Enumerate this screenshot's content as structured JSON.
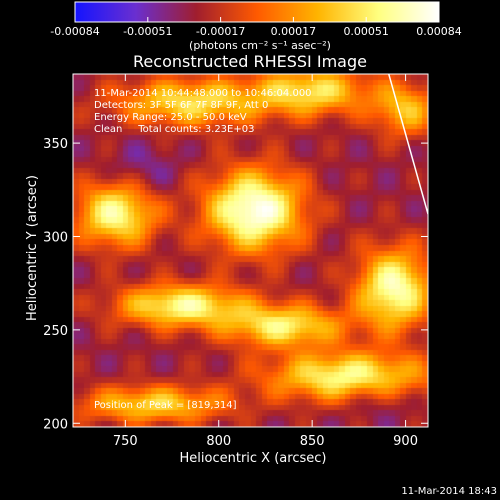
{
  "chart_data": {
    "type": "heatmap",
    "title": "Reconstructed RHESSI Image",
    "xlabel": "Heliocentric X (arcsec)",
    "ylabel": "Heliocentric Y (arcsec)",
    "xlim": [
      722,
      912
    ],
    "ylim": [
      198,
      387
    ],
    "x_ticks": [
      750,
      800,
      850,
      900
    ],
    "y_ticks": [
      200,
      250,
      300,
      350
    ],
    "colorbar": {
      "label": "(photons cm⁻² s⁻¹ asec⁻²)",
      "range": [
        -0.00084,
        0.00084
      ],
      "ticks": [
        "-0.00084",
        "-0.00051",
        "-0.00017",
        "0.00017",
        "0.00051",
        "0.00084"
      ],
      "colors": [
        "#1414ff",
        "#6a2fd0",
        "#a01e2e",
        "#ff5a00",
        "#ffb400",
        "#ffff80",
        "#ffffff"
      ]
    },
    "info_lines": [
      "11-Mar-2014 10:44:48.000 to 10:46:04.000",
      "Detectors: 3F 5F 6F 7F 8F 9F, Att 0",
      "Energy Range: 25.0 - 50.0 keV",
      "Clean     Total counts: 3.23E+03"
    ],
    "peak_label": "Position of Peak = [819,314]",
    "peak": [
      819,
      314
    ],
    "timestamp": "11-Mar-2014 18:43",
    "sources": [
      {
        "x": 819,
        "y": 314,
        "amp": 0.00084,
        "sx": 18,
        "sy": 15
      },
      {
        "x": 745,
        "y": 312,
        "amp": 0.00062,
        "sx": 15,
        "sy": 12
      },
      {
        "x": 894,
        "y": 272,
        "amp": 0.0007,
        "sx": 14,
        "sy": 15
      },
      {
        "x": 780,
        "y": 263,
        "amp": 0.0006,
        "sx": 24,
        "sy": 8
      },
      {
        "x": 835,
        "y": 252,
        "amp": 0.00052,
        "sx": 22,
        "sy": 8
      },
      {
        "x": 870,
        "y": 225,
        "amp": 0.00062,
        "sx": 30,
        "sy": 9
      },
      {
        "x": 765,
        "y": 210,
        "amp": 0.0004,
        "sx": 28,
        "sy": 7
      },
      {
        "x": 785,
        "y": 372,
        "amp": 0.00045,
        "sx": 28,
        "sy": 9
      },
      {
        "x": 850,
        "y": 378,
        "amp": 0.00046,
        "sx": 22,
        "sy": 9
      },
      {
        "x": 900,
        "y": 368,
        "amp": 0.00032,
        "sx": 12,
        "sy": 10
      }
    ],
    "background": -0.0003,
    "limb_line": {
      "x": [
        891,
        912
      ],
      "y": [
        387,
        312
      ]
    }
  }
}
